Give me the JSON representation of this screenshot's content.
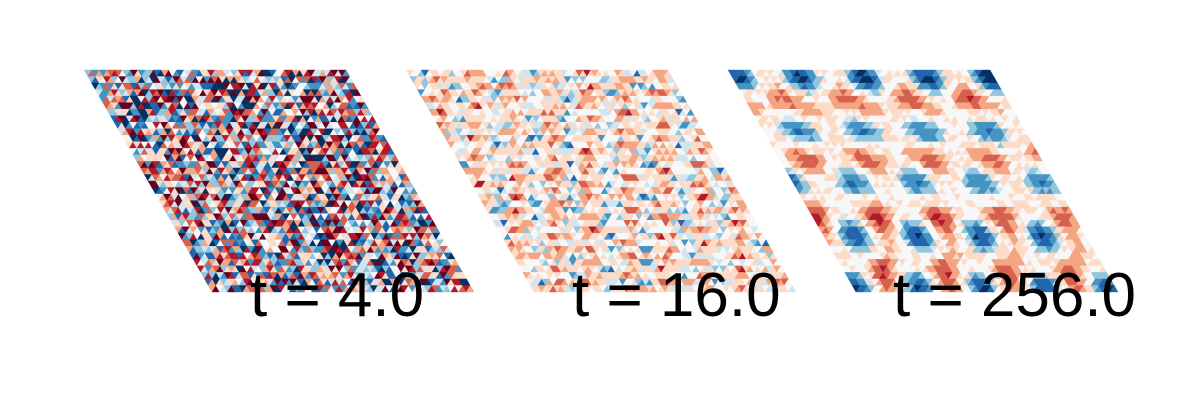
{
  "colormap": [
    "#67001f",
    "#b2182b",
    "#d6604d",
    "#f4a582",
    "#fddbc7",
    "#f7f7f7",
    "#d1e5f0",
    "#92c5de",
    "#4393c3",
    "#2166ac",
    "#053061"
  ],
  "panels": [
    {
      "label": "t = 4.0",
      "t": 4.0,
      "pattern": "disordered"
    },
    {
      "label": "t = 16.0",
      "t": 16.0,
      "pattern": "coarsening"
    },
    {
      "label": "t = 256.0",
      "t": 256.0,
      "pattern": "hexagonal-spots"
    }
  ]
}
